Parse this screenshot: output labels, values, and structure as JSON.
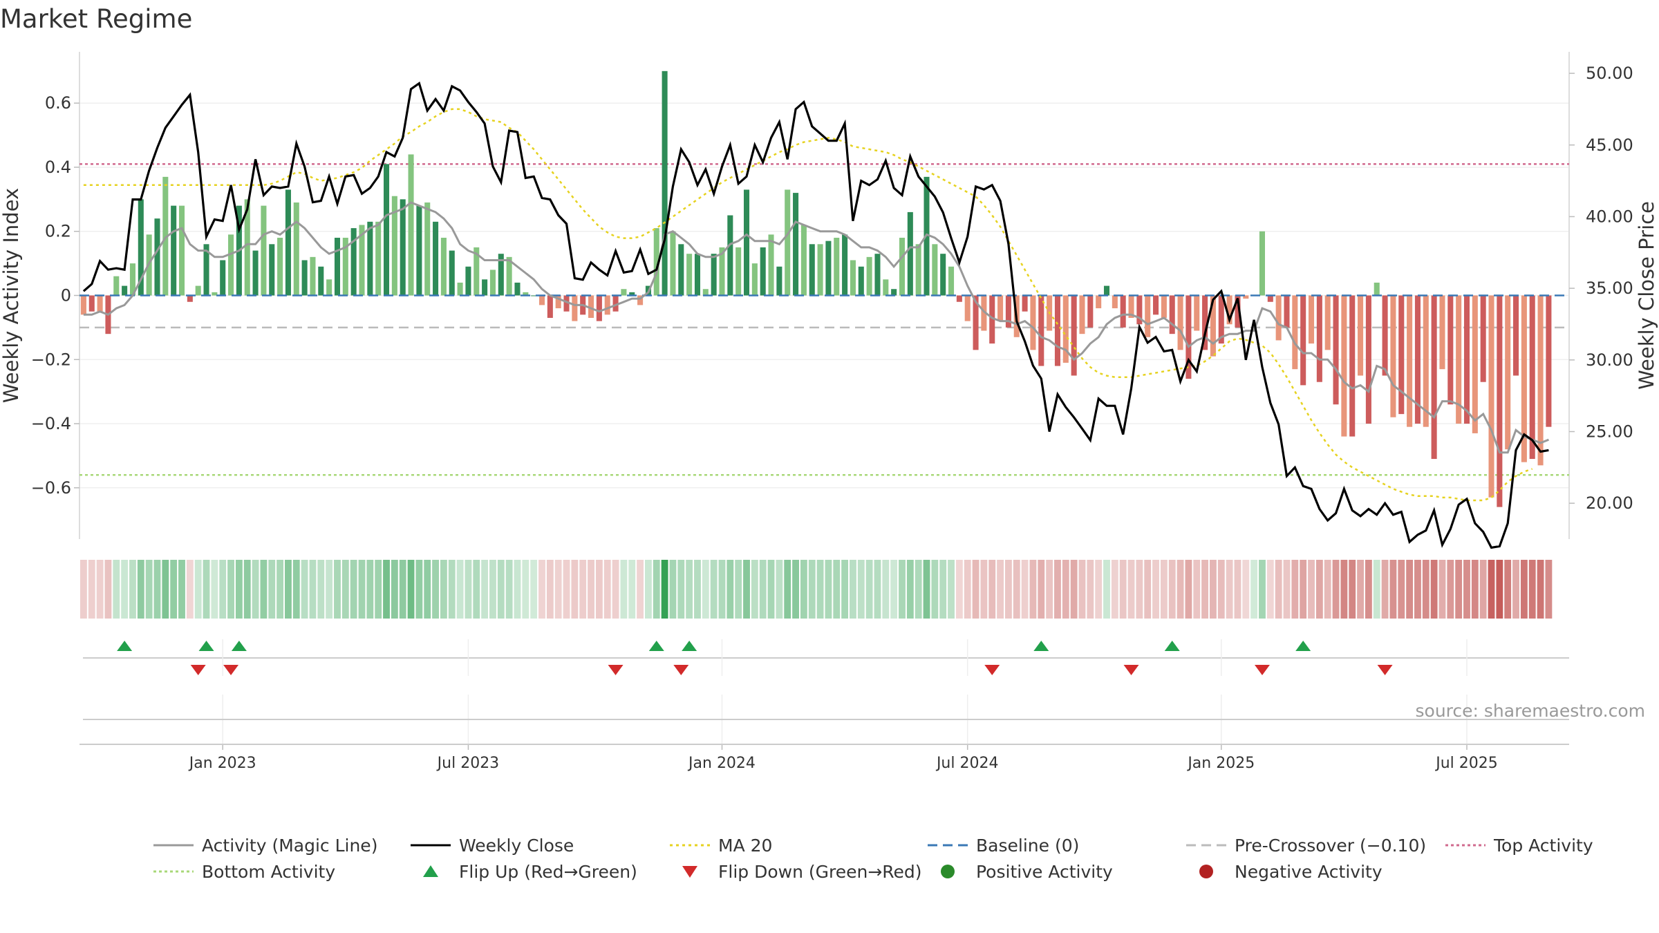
{
  "title": "Market Regime",
  "source": "source: sharemaestro.com",
  "legend": [
    {
      "label": "Activity (Magic Line)",
      "kind": "line",
      "color": "#999999",
      "dash": ""
    },
    {
      "label": "Weekly Close",
      "kind": "line",
      "color": "#000000",
      "dash": ""
    },
    {
      "label": "MA 20",
      "kind": "line",
      "color": "#e6d21f",
      "dash": "4,5"
    },
    {
      "label": "Baseline (0)",
      "kind": "line",
      "color": "#3a78b5",
      "dash": "14,8"
    },
    {
      "label": "Pre-Crossover (−0.10)",
      "kind": "line",
      "color": "#bbbbbb",
      "dash": "14,8"
    },
    {
      "label": "Top Activity",
      "kind": "line",
      "color": "#d06a8e",
      "dash": "4,4"
    },
    {
      "label": "Bottom Activity",
      "kind": "line",
      "color": "#a8d878",
      "dash": "4,4"
    },
    {
      "label": "Flip Up (Red→Green)",
      "kind": "tri-up",
      "color": "#22a04b",
      "dash": ""
    },
    {
      "label": "Flip Down (Green→Red)",
      "kind": "tri-down",
      "color": "#d22a2a",
      "dash": ""
    },
    {
      "label": "Positive Activity",
      "kind": "dot",
      "color": "#2a8a2a",
      "dash": ""
    },
    {
      "label": "Negative Activity",
      "kind": "dot",
      "color": "#b22222",
      "dash": ""
    }
  ],
  "chart_data": {
    "type": "bar",
    "title": "Market Regime",
    "ylabel": "Weekly Activity Index",
    "y2label": "Weekly Close Price",
    "ylim": [
      -0.76,
      0.76
    ],
    "y2lim": [
      17.5,
      51.5
    ],
    "yticks": [
      0.6,
      0.4,
      0.2,
      0,
      -0.2,
      -0.4,
      -0.6
    ],
    "ytick_labels": [
      "0.6",
      "0.4",
      "0.2",
      "0",
      "−0.2",
      "−0.4",
      "−0.6"
    ],
    "y2ticks": [
      20,
      25,
      30,
      35,
      40,
      45,
      50
    ],
    "y2tick_labels": [
      "20.00",
      "25.00",
      "30.00",
      "35.00",
      "40.00",
      "45.00",
      "50.00"
    ],
    "x_start_week": 0,
    "weeks": 182,
    "xticks": [
      17,
      47,
      78,
      108,
      139,
      169
    ],
    "xtick_labels": [
      "Jan 2023",
      "Jul 2023",
      "Jan 2024",
      "Jul 2024",
      "Jan 2025",
      "Jul 2025"
    ],
    "reference_lines": {
      "baseline": 0,
      "pre_crossover": -0.1,
      "top_activity": 0.41,
      "bottom_activity": -0.56
    },
    "activity": [
      -0.06,
      -0.05,
      -0.05,
      -0.12,
      0.06,
      0.03,
      0.1,
      0.3,
      0.19,
      0.24,
      0.37,
      0.28,
      0.28,
      -0.02,
      0.03,
      0.16,
      0.01,
      0.11,
      0.19,
      0.28,
      0.3,
      0.14,
      0.28,
      0.16,
      0.18,
      0.33,
      0.29,
      0.11,
      0.12,
      0.09,
      0.05,
      0.18,
      0.18,
      0.21,
      0.22,
      0.23,
      0.23,
      0.41,
      0.31,
      0.3,
      0.44,
      0.28,
      0.29,
      0.23,
      0.18,
      0.14,
      0.04,
      0.09,
      0.15,
      0.05,
      0.08,
      0.13,
      0.12,
      0.04,
      0.01,
      0.0,
      -0.03,
      -0.07,
      -0.04,
      -0.05,
      -0.08,
      -0.06,
      -0.07,
      -0.08,
      -0.06,
      -0.05,
      0.02,
      0.01,
      -0.03,
      0.03,
      0.21,
      0.7,
      0.2,
      0.16,
      0.13,
      0.13,
      0.02,
      0.13,
      0.15,
      0.25,
      0.15,
      0.33,
      0.1,
      0.15,
      0.19,
      0.09,
      0.33,
      0.32,
      0.22,
      0.16,
      0.16,
      0.17,
      0.18,
      0.19,
      0.11,
      0.09,
      0.12,
      0.13,
      0.05,
      0.02,
      0.18,
      0.26,
      0.16,
      0.37,
      0.16,
      0.13,
      0.09,
      -0.02,
      -0.08,
      -0.17,
      -0.11,
      -0.15,
      -0.08,
      -0.1,
      -0.13,
      -0.05,
      -0.17,
      -0.22,
      -0.11,
      -0.22,
      -0.21,
      -0.25,
      -0.12,
      -0.1,
      -0.04,
      0.03,
      -0.04,
      -0.1,
      -0.07,
      -0.09,
      -0.13,
      -0.06,
      -0.07,
      -0.12,
      -0.17,
      -0.26,
      -0.11,
      -0.17,
      -0.19,
      -0.15,
      -0.09,
      -0.1,
      -0.01,
      0.0,
      0.2,
      -0.02,
      -0.14,
      -0.1,
      -0.23,
      -0.28,
      -0.15,
      -0.27,
      -0.17,
      -0.34,
      -0.44,
      -0.44,
      -0.25,
      -0.4,
      0.04,
      -0.25,
      -0.38,
      -0.37,
      -0.41,
      -0.4,
      -0.41,
      -0.51,
      -0.23,
      -0.34,
      -0.4,
      -0.4,
      -0.43,
      -0.27,
      -0.63,
      -0.66,
      -0.48,
      -0.25,
      -0.52,
      -0.51,
      -0.53,
      -0.41
    ],
    "magic_line": [
      -0.06,
      -0.06,
      -0.05,
      -0.06,
      -0.04,
      -0.03,
      0.0,
      0.05,
      0.1,
      0.14,
      0.18,
      0.2,
      0.21,
      0.16,
      0.14,
      0.14,
      0.12,
      0.12,
      0.13,
      0.14,
      0.16,
      0.16,
      0.19,
      0.2,
      0.19,
      0.21,
      0.23,
      0.21,
      0.18,
      0.15,
      0.13,
      0.14,
      0.15,
      0.17,
      0.19,
      0.21,
      0.22,
      0.25,
      0.26,
      0.27,
      0.29,
      0.28,
      0.27,
      0.26,
      0.24,
      0.21,
      0.16,
      0.14,
      0.13,
      0.11,
      0.11,
      0.11,
      0.11,
      0.09,
      0.07,
      0.05,
      0.02,
      0.0,
      -0.01,
      -0.02,
      -0.03,
      -0.03,
      -0.04,
      -0.05,
      -0.04,
      -0.03,
      -0.02,
      -0.01,
      -0.01,
      0.01,
      0.07,
      0.19,
      0.2,
      0.18,
      0.16,
      0.13,
      0.12,
      0.12,
      0.13,
      0.16,
      0.17,
      0.19,
      0.17,
      0.17,
      0.17,
      0.16,
      0.19,
      0.23,
      0.22,
      0.21,
      0.2,
      0.2,
      0.2,
      0.19,
      0.17,
      0.15,
      0.15,
      0.14,
      0.12,
      0.09,
      0.12,
      0.15,
      0.15,
      0.19,
      0.18,
      0.16,
      0.13,
      0.09,
      0.03,
      -0.02,
      -0.05,
      -0.07,
      -0.08,
      -0.08,
      -0.09,
      -0.08,
      -0.1,
      -0.13,
      -0.14,
      -0.16,
      -0.17,
      -0.2,
      -0.18,
      -0.15,
      -0.13,
      -0.09,
      -0.07,
      -0.06,
      -0.06,
      -0.07,
      -0.09,
      -0.08,
      -0.07,
      -0.09,
      -0.11,
      -0.16,
      -0.14,
      -0.13,
      -0.15,
      -0.13,
      -0.12,
      -0.12,
      -0.11,
      -0.11,
      -0.04,
      -0.05,
      -0.09,
      -0.1,
      -0.15,
      -0.18,
      -0.18,
      -0.2,
      -0.2,
      -0.23,
      -0.27,
      -0.29,
      -0.28,
      -0.3,
      -0.22,
      -0.23,
      -0.28,
      -0.3,
      -0.32,
      -0.34,
      -0.36,
      -0.38,
      -0.33,
      -0.33,
      -0.34,
      -0.36,
      -0.39,
      -0.37,
      -0.42,
      -0.49,
      -0.49,
      -0.42,
      -0.44,
      -0.45,
      -0.46,
      -0.45
    ],
    "weekly_close": [
      34.8,
      35.3,
      36.9,
      36.3,
      36.4,
      36.3,
      41.2,
      41.2,
      43.2,
      44.8,
      46.2,
      47.0,
      47.8,
      48.5,
      44.5,
      38.6,
      39.8,
      39.7,
      42.2,
      39.1,
      40.5,
      44.0,
      41.5,
      42.1,
      42.0,
      42.1,
      45.1,
      43.5,
      41.0,
      41.1,
      42.8,
      40.9,
      42.8,
      42.9,
      41.6,
      42.0,
      42.8,
      44.5,
      44.2,
      45.5,
      48.9,
      49.3,
      47.4,
      48.2,
      47.4,
      49.1,
      48.8,
      48.0,
      47.3,
      46.5,
      43.5,
      42.4,
      46.0,
      45.9,
      42.7,
      42.8,
      41.3,
      41.2,
      40.1,
      39.5,
      35.7,
      35.6,
      36.8,
      36.3,
      35.9,
      37.6,
      36.1,
      36.2,
      37.7,
      36.0,
      36.3,
      38.4,
      42.1,
      44.7,
      43.8,
      42.2,
      43.3,
      41.6,
      43.5,
      45.0,
      42.3,
      42.8,
      45.0,
      43.8,
      45.5,
      46.6,
      44.0,
      47.5,
      48.0,
      46.3,
      45.8,
      45.3,
      45.3,
      46.5,
      39.7,
      42.5,
      42.2,
      42.6,
      43.9,
      42.0,
      41.5,
      44.2,
      42.8,
      42.1,
      41.4,
      40.3,
      38.5,
      36.8,
      38.6,
      42.1,
      41.9,
      42.2,
      41.1,
      38.1,
      32.7,
      31.3,
      29.6,
      28.7,
      25.0,
      27.6,
      26.7,
      26.0,
      25.2,
      24.4,
      27.3,
      26.8,
      26.8,
      24.8,
      28.0,
      32.3,
      31.2,
      31.6,
      30.6,
      30.7,
      28.5,
      30.0,
      29.2,
      31.8,
      34.2,
      34.8,
      32.8,
      34.3,
      30.0,
      32.8,
      29.5,
      27.0,
      25.5,
      21.9,
      22.5,
      21.2,
      21.0,
      19.6,
      18.8,
      19.3,
      21.0,
      19.5,
      19.1,
      19.6,
      19.2,
      20.0,
      19.2,
      19.4,
      17.3,
      17.8,
      18.1,
      19.5,
      17.1,
      18.2,
      19.9,
      20.3,
      18.6,
      18.0,
      16.9,
      17.0,
      18.6,
      23.7,
      24.8,
      24.4,
      23.6,
      23.7
    ],
    "ma20": [
      42.2,
      42.2,
      42.2,
      42.2,
      42.2,
      42.2,
      42.2,
      42.2,
      42.2,
      42.2,
      42.2,
      42.2,
      42.2,
      42.2,
      42.2,
      42.2,
      42.2,
      42.2,
      42.2,
      42.2,
      42.2,
      42.2,
      42.2,
      42.3,
      42.5,
      42.8,
      43.1,
      43.0,
      42.7,
      42.5,
      42.6,
      42.7,
      42.9,
      43.1,
      43.4,
      43.9,
      44.3,
      44.7,
      45.1,
      45.6,
      45.9,
      46.3,
      46.6,
      47.0,
      47.3,
      47.5,
      47.5,
      47.3,
      47.0,
      46.8,
      46.7,
      46.6,
      46.2,
      45.9,
      45.3,
      44.7,
      44.0,
      43.3,
      42.6,
      41.9,
      41.2,
      40.5,
      39.9,
      39.3,
      38.9,
      38.6,
      38.5,
      38.5,
      38.6,
      38.9,
      39.2,
      39.6,
      40.0,
      40.4,
      40.8,
      41.2,
      41.6,
      42.0,
      42.4,
      42.7,
      43.0,
      43.3,
      43.6,
      43.9,
      44.2,
      44.5,
      44.7,
      45.0,
      45.2,
      45.3,
      45.4,
      45.5,
      45.4,
      45.2,
      44.9,
      44.8,
      44.7,
      44.6,
      44.5,
      44.3,
      44.0,
      43.8,
      43.5,
      43.2,
      42.9,
      42.6,
      42.3,
      42.0,
      41.7,
      41.4,
      40.8,
      40.1,
      39.3,
      38.3,
      37.3,
      36.3,
      35.3,
      34.3,
      33.3,
      32.5,
      31.7,
      30.9,
      30.1,
      29.5,
      29.1,
      28.9,
      28.8,
      28.8,
      28.8,
      28.9,
      29.0,
      29.1,
      29.2,
      29.3,
      29.4,
      29.5,
      29.6,
      29.9,
      30.3,
      30.8,
      31.3,
      31.5,
      31.4,
      31.2,
      31.0,
      30.5,
      29.7,
      28.8,
      27.8,
      26.8,
      25.8,
      24.9,
      24.1,
      23.4,
      22.9,
      22.5,
      22.2,
      21.9,
      21.6,
      21.3,
      21.0,
      20.8,
      20.6,
      20.5,
      20.5,
      20.5,
      20.4,
      20.4,
      20.3,
      20.2,
      20.2,
      20.2,
      20.4,
      20.9,
      21.5,
      21.9,
      22.2,
      22.4
    ],
    "flip_up": [
      5,
      15,
      19,
      70,
      74,
      117,
      133,
      149
    ],
    "flip_down": [
      14,
      18,
      65,
      73,
      111,
      128,
      144,
      159
    ]
  }
}
